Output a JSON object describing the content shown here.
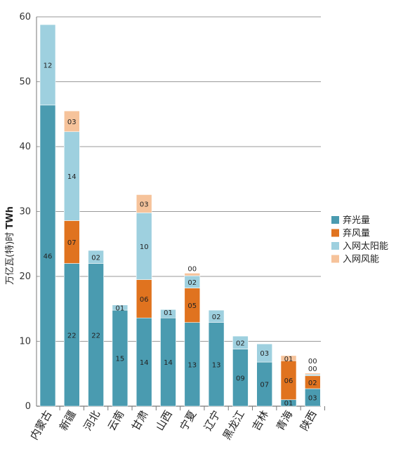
{
  "chart_data": {
    "type": "bar",
    "stacked": true,
    "title": "",
    "xlabel": "",
    "ylabel": "万亿瓦(特)时",
    "ylabel_unit": "TWh",
    "ylim": [
      0,
      60
    ],
    "yticks": [
      0,
      10,
      20,
      30,
      40,
      50,
      60
    ],
    "grid": true,
    "legend_position": "right",
    "categories": [
      "内蒙古",
      "新疆",
      "河北",
      "云南",
      "甘肃",
      "山西",
      "宁夏",
      "辽宁",
      "黑龙江",
      "吉林",
      "青海",
      "陕西"
    ],
    "series": [
      {
        "name": "弃光量",
        "color": "#4a9bb0",
        "values": [
          46.4,
          22.0,
          22.0,
          14.8,
          13.6,
          13.6,
          12.9,
          12.9,
          8.8,
          6.8,
          1.0,
          2.7
        ],
        "labels": [
          "46",
          "22",
          "22",
          "15",
          "14",
          "14",
          "13",
          "13",
          "09",
          "07",
          "01",
          "03"
        ]
      },
      {
        "name": "弃风量",
        "color": "#e0731f",
        "values": [
          0,
          6.6,
          0,
          0,
          5.9,
          0,
          5.3,
          0,
          0,
          0,
          6.0,
          2.0
        ],
        "labels": [
          "",
          "07",
          "",
          "",
          "06",
          "",
          "05",
          "",
          "",
          "",
          "06",
          "02"
        ]
      },
      {
        "name": "入网太阳能",
        "color": "#9ed0df",
        "values": [
          12.4,
          13.7,
          2.0,
          0.8,
          10.3,
          1.3,
          1.9,
          1.9,
          2.0,
          2.8,
          0,
          0.2
        ],
        "labels": [
          "12",
          "14",
          "02",
          "01",
          "10",
          "01",
          "02",
          "02",
          "02",
          "03",
          "",
          "00"
        ]
      },
      {
        "name": "入网风能",
        "color": "#f6c39b",
        "values": [
          0,
          3.2,
          0,
          0,
          2.8,
          0,
          0.4,
          0,
          0,
          0,
          0.8,
          0.2
        ],
        "labels": [
          "",
          "03",
          "",
          "",
          "03",
          "",
          "00",
          "",
          "",
          "",
          "01",
          "00"
        ]
      }
    ]
  }
}
